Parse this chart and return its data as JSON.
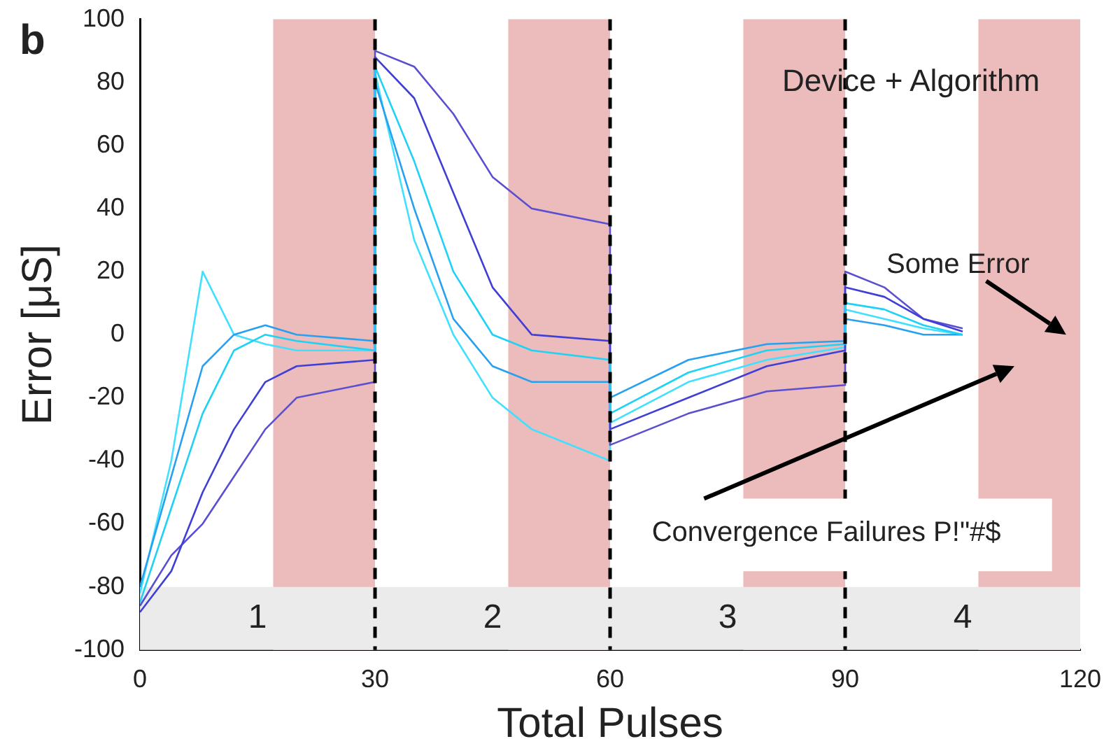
{
  "chart_data": {
    "type": "line",
    "xlabel": "Total Pulses",
    "ylabel": "Error [μS]",
    "xlim": [
      0,
      120
    ],
    "xticks": [
      0,
      30,
      60,
      90,
      120
    ],
    "ylim": [
      -100,
      100
    ],
    "yticks": [
      -100,
      -80,
      -60,
      -40,
      -20,
      0,
      20,
      40,
      60,
      80,
      100
    ],
    "grid": false,
    "legend": false,
    "marker": "none",
    "line_style": "solid",
    "series": [
      {
        "color": "#1ed2f5",
        "x": [
          0,
          4,
          8,
          12,
          16,
          20,
          30,
          30,
          35,
          40,
          45,
          50,
          60,
          60,
          70,
          80,
          90,
          90,
          95,
          100,
          105
        ],
        "values": [
          -85,
          -55,
          -25,
          -5,
          0,
          -2,
          -5,
          85,
          55,
          20,
          0,
          -5,
          -8,
          -25,
          -12,
          -5,
          -3,
          10,
          8,
          3,
          0
        ]
      },
      {
        "color": "#3f3fd6",
        "x": [
          0,
          4,
          8,
          12,
          16,
          20,
          30,
          30,
          35,
          40,
          45,
          50,
          60,
          60,
          70,
          80,
          90,
          90,
          95,
          100,
          105
        ],
        "values": [
          -88,
          -75,
          -50,
          -30,
          -15,
          -10,
          -8,
          88,
          75,
          45,
          15,
          0,
          -2,
          -30,
          -20,
          -10,
          -5,
          15,
          12,
          5,
          1
        ]
      },
      {
        "color": "#28a0f0",
        "x": [
          0,
          4,
          8,
          12,
          16,
          20,
          30,
          30,
          35,
          40,
          45,
          50,
          60,
          60,
          70,
          80,
          90,
          90,
          95,
          100,
          105
        ],
        "values": [
          -80,
          -45,
          -10,
          0,
          3,
          0,
          -2,
          80,
          40,
          5,
          -10,
          -15,
          -15,
          -20,
          -8,
          -3,
          -2,
          5,
          3,
          0,
          0
        ]
      },
      {
        "color": "#5a4fd0",
        "x": [
          0,
          4,
          8,
          12,
          16,
          20,
          30,
          30,
          35,
          40,
          45,
          50,
          60,
          60,
          70,
          80,
          90,
          90,
          95,
          100,
          105
        ],
        "values": [
          -86,
          -70,
          -60,
          -45,
          -30,
          -20,
          -15,
          90,
          85,
          70,
          50,
          40,
          35,
          -35,
          -25,
          -18,
          -16,
          20,
          15,
          5,
          2
        ]
      },
      {
        "color": "#40e0ff",
        "x": [
          0,
          4,
          8,
          12,
          16,
          20,
          30,
          30,
          35,
          40,
          45,
          50,
          60,
          60,
          70,
          80,
          90,
          90,
          95,
          100,
          105
        ],
        "values": [
          -82,
          -40,
          20,
          0,
          -3,
          -5,
          -5,
          83,
          30,
          0,
          -20,
          -30,
          -40,
          -28,
          -15,
          -8,
          -4,
          8,
          5,
          2,
          0
        ]
      }
    ],
    "ref_lines": [
      {
        "axis": "x",
        "value": 30,
        "color": "#000000",
        "line_style": "dashed"
      },
      {
        "axis": "x",
        "value": 60,
        "color": "#000000",
        "line_style": "dashed"
      },
      {
        "axis": "x",
        "value": 90,
        "color": "#000000",
        "line_style": "dashed"
      }
    ],
    "bands": [
      {
        "axis": "x",
        "from": 17,
        "to": 30,
        "color": "#ecbcbc"
      },
      {
        "axis": "x",
        "from": 47,
        "to": 60,
        "color": "#ecbcbc"
      },
      {
        "axis": "x",
        "from": 77,
        "to": 90,
        "color": "#ecbcbc"
      },
      {
        "axis": "x",
        "from": 107,
        "to": 120,
        "color": "#ecbcbc"
      },
      {
        "axis": "y",
        "from": -100,
        "to": -80,
        "color": "#ebebeb"
      }
    ],
    "annotations": [
      "b",
      "Device + Algorithm",
      "Some Error",
      "Convergence Failures P!\"#$",
      "1",
      "2",
      "3",
      "4"
    ]
  }
}
